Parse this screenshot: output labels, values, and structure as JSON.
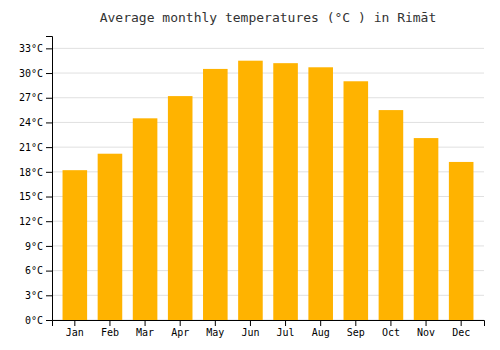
{
  "chart_data": {
    "type": "bar",
    "title": "Average monthly temperatures (°C ) in Rimāt",
    "categories": [
      "Jan",
      "Feb",
      "Mar",
      "Apr",
      "May",
      "Jun",
      "Jul",
      "Aug",
      "Sep",
      "Oct",
      "Nov",
      "Dec"
    ],
    "values": [
      18.2,
      20.2,
      24.5,
      27.2,
      30.5,
      31.5,
      31.2,
      30.7,
      29.0,
      25.5,
      22.1,
      19.2
    ],
    "color": "#FFB300",
    "ylim": [
      0,
      34.5
    ],
    "yticks": [
      {
        "value": 0,
        "label": "0°C"
      },
      {
        "value": 3,
        "label": "3°C"
      },
      {
        "value": 6,
        "label": "6°C"
      },
      {
        "value": 9,
        "label": "9°C"
      },
      {
        "value": 12,
        "label": "12°C"
      },
      {
        "value": 15,
        "label": "15°C"
      },
      {
        "value": 18,
        "label": "18°C"
      },
      {
        "value": 21,
        "label": "21°C"
      },
      {
        "value": 24,
        "label": "24°C"
      },
      {
        "value": 27,
        "label": "27°C"
      },
      {
        "value": 30,
        "label": "30°C"
      },
      {
        "value": 33,
        "label": "33°C"
      }
    ],
    "grid": true
  }
}
